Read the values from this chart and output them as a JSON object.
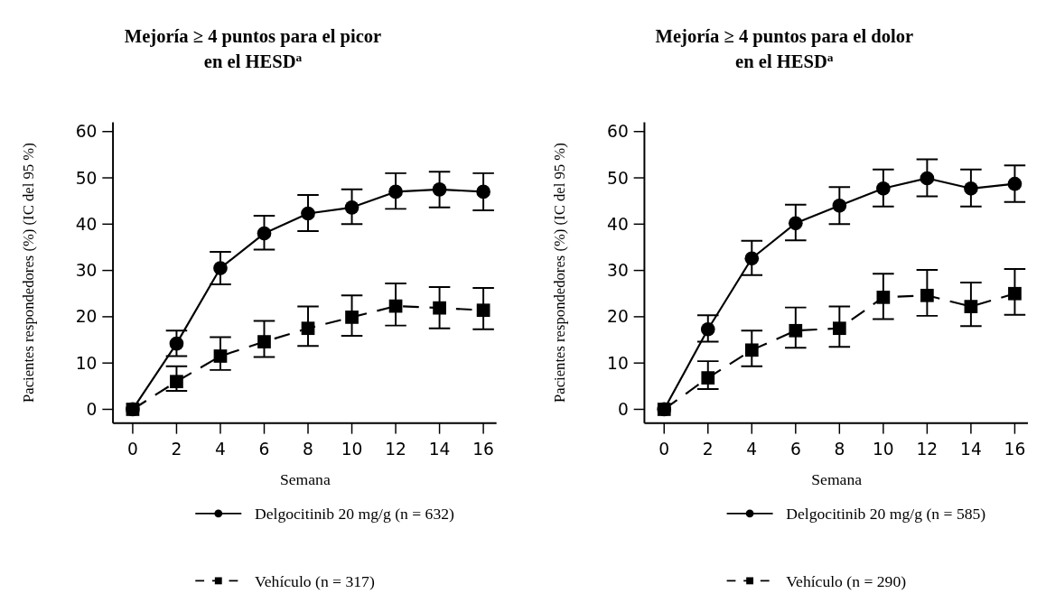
{
  "chart_data": [
    {
      "type": "line",
      "title": "Mejoría ≥ 4 puntos para el picor en el HESD$^{a}$",
      "xlabel": "Semana",
      "ylabel": "Pacientes respondedores (%) (IC del 95 %)",
      "x": [
        0,
        2,
        4,
        6,
        8,
        10,
        12,
        14,
        16
      ],
      "xlim": [
        -0.9,
        16.6
      ],
      "xticks": [
        0,
        2,
        4,
        6,
        8,
        10,
        12,
        14,
        16
      ],
      "ylim": [
        -3,
        62
      ],
      "yticks": [
        0,
        10,
        20,
        30,
        40,
        50,
        60
      ],
      "legend": "bottom",
      "series": [
        {
          "name": "Delgocitinib 20 mg/g (n = 632)",
          "color": "#000000",
          "marker": "circle",
          "line_style": "solid",
          "values": [
            0,
            14.2,
            30.5,
            38,
            42.3,
            43.6,
            47,
            47.5,
            47
          ],
          "errors": [
            null,
            [
              11.5,
              17
            ],
            [
              27,
              34
            ],
            [
              34.5,
              41.8
            ],
            [
              38.5,
              46.3
            ],
            [
              40,
              47.5
            ],
            [
              43.3,
              51
            ],
            [
              43.6,
              51.3
            ],
            [
              43,
              51
            ]
          ]
        },
        {
          "name": "Vehículo (n = 317)",
          "color": "#000000",
          "marker": "square",
          "line_style": "dashed",
          "values": [
            0,
            6,
            11.5,
            14.6,
            17.5,
            19.9,
            22.3,
            21.9,
            21.4
          ],
          "errors": [
            null,
            [
              4,
              9.3
            ],
            [
              8.5,
              15.6
            ],
            [
              11.3,
              19.1
            ],
            [
              13.7,
              22.2
            ],
            [
              15.9,
              24.6
            ],
            [
              18.1,
              27.2
            ],
            [
              17.5,
              26.4
            ],
            [
              17.3,
              26.2
            ]
          ]
        }
      ]
    },
    {
      "type": "line",
      "title": "Mejoría ≥ 4 puntos para el dolor en el HESD$^{a}$",
      "xlabel": "Semana",
      "ylabel": "Pacientes respondedores (%) (IC del 95 %)",
      "x": [
        0,
        2,
        4,
        6,
        8,
        10,
        12,
        14,
        16
      ],
      "xlim": [
        -0.9,
        16.6
      ],
      "xticks": [
        0,
        2,
        4,
        6,
        8,
        10,
        12,
        14,
        16
      ],
      "ylim": [
        -3,
        62
      ],
      "yticks": [
        0,
        10,
        20,
        30,
        40,
        50,
        60
      ],
      "legend": "bottom",
      "series": [
        {
          "name": "Delgocitinib 20 mg/g (n = 585)",
          "color": "#000000",
          "marker": "circle",
          "line_style": "solid",
          "values": [
            0,
            17.3,
            32.6,
            40.2,
            44,
            47.7,
            49.9,
            47.7,
            48.7
          ],
          "errors": [
            null,
            [
              14.6,
              20.3
            ],
            [
              29,
              36.4
            ],
            [
              36.5,
              44.2
            ],
            [
              40,
              48
            ],
            [
              43.8,
              51.8
            ],
            [
              46,
              54
            ],
            [
              43.8,
              51.8
            ],
            [
              44.8,
              52.7
            ]
          ]
        },
        {
          "name": "Vehículo (n = 290)",
          "color": "#000000",
          "marker": "square",
          "line_style": "dashed",
          "values": [
            0,
            6.8,
            12.8,
            17,
            17.5,
            24.2,
            24.6,
            22.2,
            25
          ],
          "errors": [
            null,
            [
              4.4,
              10.4
            ],
            [
              9.3,
              17
            ],
            [
              13.3,
              22
            ],
            [
              13.5,
              22.2
            ],
            [
              19.5,
              29.3
            ],
            [
              20.2,
              30.1
            ],
            [
              18,
              27.4
            ],
            [
              20.4,
              30.3
            ]
          ]
        }
      ]
    }
  ]
}
